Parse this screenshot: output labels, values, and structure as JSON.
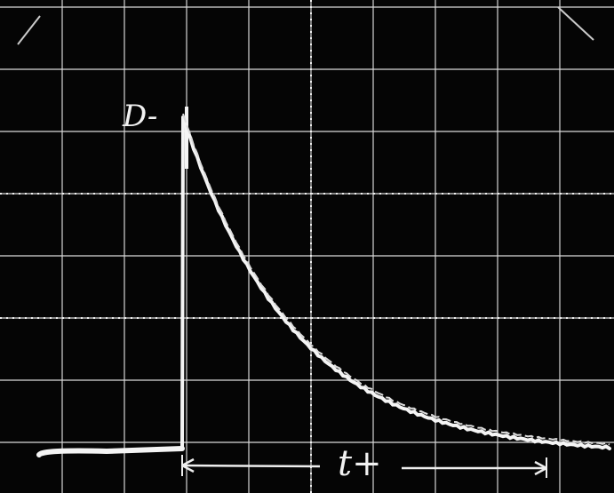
{
  "labels": {
    "pulse_marker": "D-",
    "time_label": "t+"
  }
}
